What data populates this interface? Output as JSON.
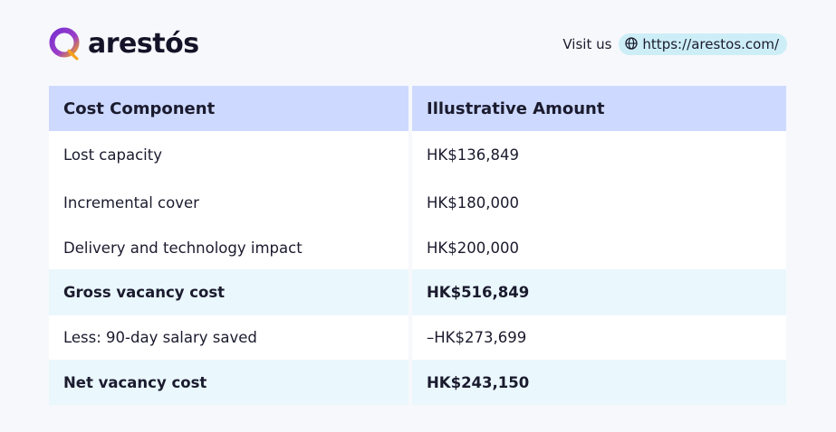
{
  "brand": {
    "name": "arestós",
    "accent_purple": "#7a2fd0",
    "accent_orange": "#f4a21b",
    "logo_icon": "speech-bubble-q-icon"
  },
  "header": {
    "visit_label": "Visit us",
    "url_icon": "globe-icon",
    "url": "https://arestos.com/"
  },
  "table": {
    "columns": [
      "Cost Component",
      "Illustrative Amount"
    ],
    "rows": [
      {
        "component": "Lost capacity",
        "amount": "HK$136,849",
        "highlight": false
      },
      {
        "component": "Incremental cover",
        "amount": "HK$180,000",
        "highlight": false
      },
      {
        "component": "Delivery and technology impact",
        "amount": "HK$200,000",
        "highlight": false
      },
      {
        "component": "Gross vacancy cost",
        "amount": "HK$516,849",
        "highlight": true
      },
      {
        "component": "Less: 90-day salary saved",
        "amount": "–HK$273,699",
        "highlight": false
      },
      {
        "component": "Net vacancy cost",
        "amount": "HK$243,150",
        "highlight": true
      }
    ],
    "header_color": "#cdd9ff",
    "highlight_color": "#eaf7fd"
  }
}
